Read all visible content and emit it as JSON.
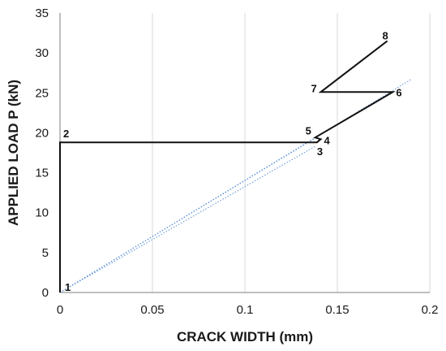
{
  "chart_data": {
    "type": "line",
    "title": "",
    "xlabel": "CRACK WIDTH (mm)",
    "ylabel": "APPLIED LOAD P (kN)",
    "xlim": [
      0,
      0.2
    ],
    "ylim": [
      0,
      35
    ],
    "xticks": [
      0,
      0.05,
      0.1,
      0.15,
      0.2
    ],
    "xtick_labels": [
      "0",
      "0.05",
      "0.1",
      "0.15",
      "0.2"
    ],
    "yticks": [
      0,
      5,
      10,
      15,
      20,
      25,
      30,
      35
    ],
    "ytick_labels": [
      "0",
      "5",
      "10",
      "15",
      "20",
      "25",
      "30",
      "35"
    ],
    "grid": "vertical",
    "series": [
      {
        "points": [
          {
            "label": "1",
            "x": 0.0,
            "y": 0.0
          },
          {
            "label": "2",
            "x": 0.0,
            "y": 18.8
          },
          {
            "label": "3",
            "x": 0.139,
            "y": 18.8
          },
          {
            "label": "4",
            "x": 0.141,
            "y": 19.2
          },
          {
            "label": "5",
            "x": 0.138,
            "y": 19.4
          },
          {
            "label": "6",
            "x": 0.18,
            "y": 25.1
          },
          {
            "label": "7",
            "x": 0.141,
            "y": 25.1
          },
          {
            "label": "8",
            "x": 0.177,
            "y": 31.5
          }
        ],
        "color": "#111111",
        "style": "solid"
      }
    ],
    "reference_lines": [
      {
        "from": [
          0,
          0
        ],
        "to": [
          0.19,
          26.7
        ],
        "color": "#5b8fd6",
        "style": "dotted"
      },
      {
        "from": [
          0,
          0
        ],
        "to": [
          0.14,
          19.6
        ],
        "color": "#5b8fd6",
        "style": "dotted"
      },
      {
        "from": [
          0,
          0
        ],
        "to": [
          0.138,
          18.3
        ],
        "color": "#5b8fd6",
        "style": "dotted"
      }
    ],
    "colors": {
      "grid": "#d9d9d9",
      "axis": "#7f7f7f"
    }
  }
}
